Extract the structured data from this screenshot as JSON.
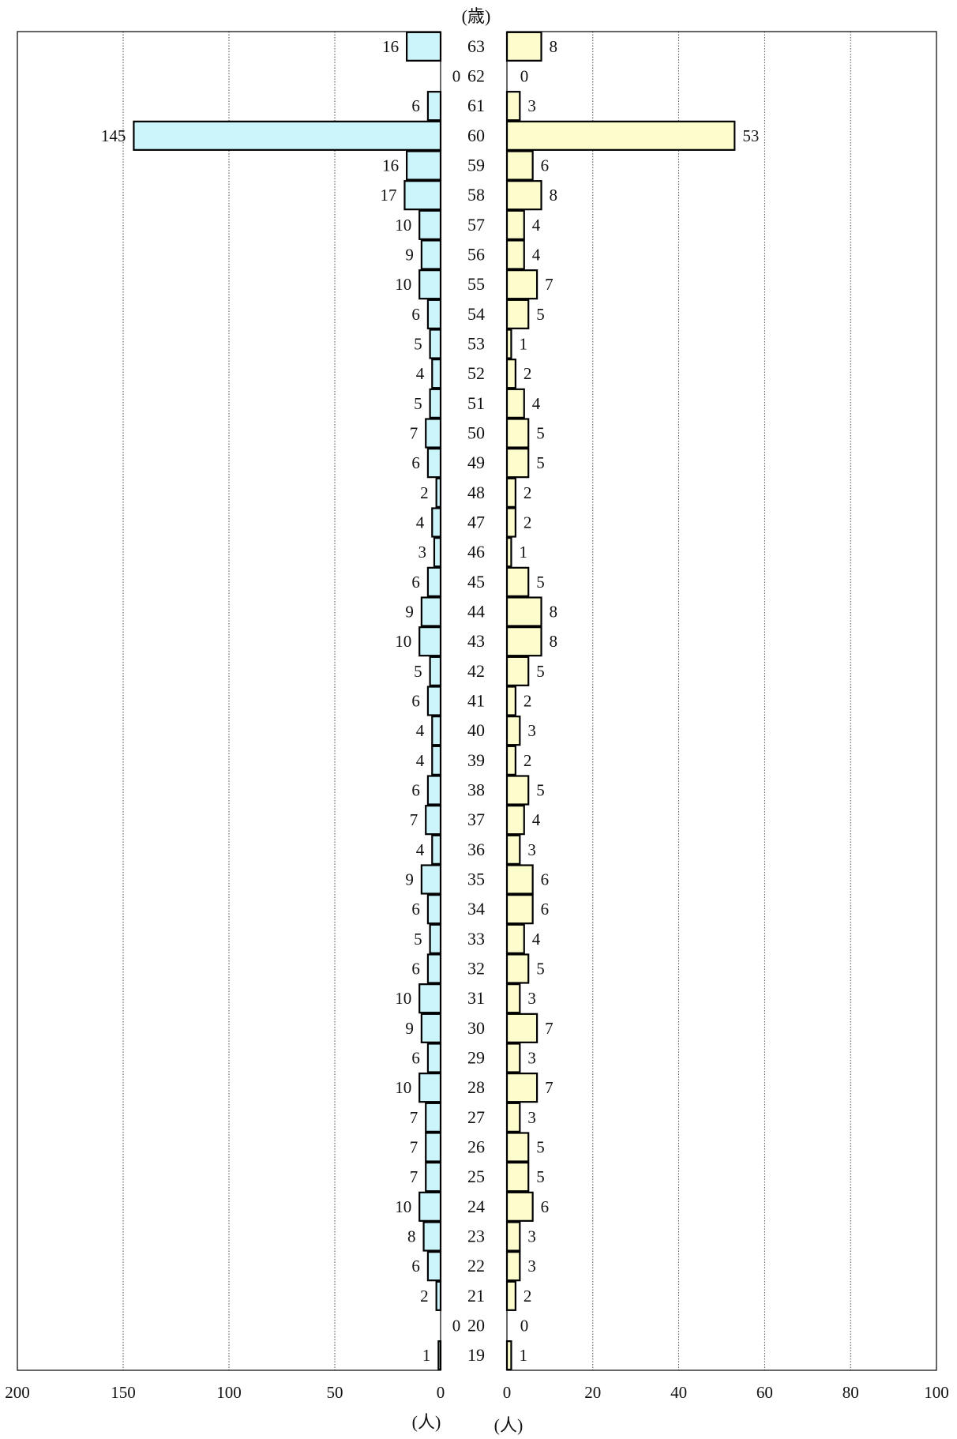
{
  "chart_data": {
    "type": "bar",
    "layout": "back-to-back horizontal bar (population pyramid)",
    "age_unit_label": "(歳)",
    "categories": [
      63,
      62,
      61,
      60,
      59,
      58,
      57,
      56,
      55,
      54,
      53,
      52,
      51,
      50,
      49,
      48,
      47,
      46,
      45,
      44,
      43,
      42,
      41,
      40,
      39,
      38,
      37,
      36,
      35,
      34,
      33,
      32,
      31,
      30,
      29,
      28,
      27,
      26,
      25,
      24,
      23,
      22,
      21,
      20,
      19
    ],
    "series": [
      {
        "side": "left",
        "color": "#ccf5fb",
        "values": [
          16,
          0,
          6,
          145,
          16,
          17,
          10,
          9,
          10,
          6,
          5,
          4,
          5,
          7,
          6,
          2,
          4,
          3,
          6,
          9,
          10,
          5,
          6,
          4,
          4,
          6,
          7,
          4,
          9,
          6,
          5,
          6,
          10,
          9,
          6,
          10,
          7,
          7,
          7,
          10,
          8,
          6,
          2,
          0,
          1
        ],
        "xlim": [
          0,
          200
        ],
        "ticks": [
          200,
          150,
          100,
          50,
          0
        ],
        "unit_label": "(人)"
      },
      {
        "side": "right",
        "color": "#fdfccc",
        "values": [
          8,
          0,
          3,
          53,
          6,
          8,
          4,
          4,
          7,
          5,
          1,
          2,
          4,
          5,
          5,
          2,
          2,
          1,
          5,
          8,
          8,
          5,
          2,
          3,
          2,
          5,
          4,
          3,
          6,
          6,
          4,
          5,
          3,
          7,
          3,
          7,
          3,
          5,
          5,
          6,
          3,
          3,
          2,
          0,
          1
        ],
        "xlim": [
          0,
          100
        ],
        "ticks": [
          0,
          20,
          40,
          60,
          80,
          100
        ],
        "unit_label": "(人)"
      }
    ],
    "grid": "vertical dotted"
  }
}
